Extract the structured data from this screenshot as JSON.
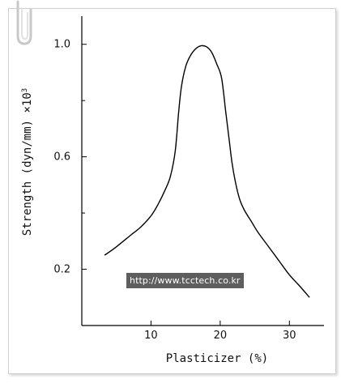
{
  "chart_data": {
    "type": "line",
    "xlabel": "Plasticizer (%)",
    "ylabel": "Strength (dyn/mm) ×10",
    "ylabel_superscript": "3",
    "xlim": [
      0,
      35
    ],
    "ylim": [
      0.0,
      1.1
    ],
    "xticks": [
      10,
      20,
      30
    ],
    "xtick_labels": [
      "10",
      "20",
      "30"
    ],
    "yticks": [
      0.2,
      0.6,
      1.0
    ],
    "ytick_labels": [
      "0.2",
      "0.6",
      "1.0"
    ],
    "yminor_ticks": [
      0.4,
      0.8
    ],
    "grid": false,
    "series": [
      {
        "x": [
          3.3,
          5.0,
          7.0,
          8.5,
          10.0,
          11.0,
          12.0,
          12.8,
          13.5,
          14.0,
          14.4,
          15.0,
          15.7,
          16.5,
          17.3,
          18.1,
          18.8,
          19.5,
          20.2,
          20.8,
          21.3,
          21.7,
          22.2,
          22.8,
          23.5,
          24.5,
          25.5,
          27.0,
          28.5,
          30.0,
          31.5,
          32.9
        ],
        "y": [
          0.25,
          0.28,
          0.32,
          0.35,
          0.39,
          0.43,
          0.48,
          0.53,
          0.62,
          0.76,
          0.85,
          0.92,
          0.96,
          0.985,
          0.995,
          0.99,
          0.97,
          0.93,
          0.88,
          0.76,
          0.66,
          0.58,
          0.51,
          0.45,
          0.41,
          0.37,
          0.33,
          0.28,
          0.23,
          0.18,
          0.14,
          0.1
        ]
      }
    ]
  },
  "watermark": {
    "text": "http://www.tcctech.co.kr"
  }
}
